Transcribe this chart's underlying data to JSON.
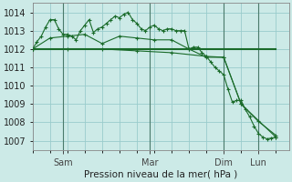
{
  "bg_color": "#cceae7",
  "grid_color": "#99cccc",
  "line_color": "#1a6b2a",
  "title": "Pression niveau de la mer( hPa )",
  "ylim": [
    1006.5,
    1014.5
  ],
  "yticks": [
    1007,
    1008,
    1009,
    1010,
    1011,
    1012,
    1013,
    1014
  ],
  "series1_x": [
    0,
    2,
    4,
    6,
    8,
    10,
    12,
    14,
    16,
    18,
    20,
    22,
    24,
    26,
    28,
    30,
    32,
    34,
    36,
    38,
    40,
    42,
    44,
    46,
    48,
    50,
    52,
    54,
    56,
    58,
    60,
    62,
    64,
    66,
    68,
    70,
    72,
    74,
    76,
    78,
    80,
    82,
    84,
    86,
    88,
    90,
    92,
    94,
    96,
    98,
    100,
    102,
    104,
    106,
    108,
    110,
    112
  ],
  "series1_y": [
    1012.0,
    1012.4,
    1012.7,
    1013.2,
    1013.6,
    1013.6,
    1013.1,
    1012.8,
    1012.8,
    1012.7,
    1012.5,
    1013.0,
    1013.3,
    1013.6,
    1012.9,
    1013.1,
    1013.2,
    1013.4,
    1013.6,
    1013.8,
    1013.7,
    1013.9,
    1014.0,
    1013.6,
    1013.4,
    1013.1,
    1013.0,
    1013.2,
    1013.3,
    1013.1,
    1013.0,
    1013.1,
    1013.1,
    1013.0,
    1013.0,
    1013.0,
    1012.0,
    1012.1,
    1012.1,
    1011.8,
    1011.6,
    1011.3,
    1011.0,
    1010.8,
    1010.6,
    1009.8,
    1009.1,
    1009.2,
    1009.2,
    1008.7,
    1008.3,
    1007.8,
    1007.4,
    1007.2,
    1007.1,
    1007.15,
    1007.2
  ],
  "series2_x": [
    0,
    8,
    16,
    24,
    32,
    40,
    48,
    56,
    64,
    72,
    80,
    88,
    96,
    104,
    112
  ],
  "series2_y": [
    1012.0,
    1012.6,
    1012.7,
    1012.8,
    1012.3,
    1012.7,
    1012.6,
    1012.5,
    1012.5,
    1012.0,
    1011.55,
    1011.55,
    1009.0,
    1008.05,
    1007.3
  ],
  "series3_x": [
    0,
    112
  ],
  "series3_y": [
    1012.0,
    1012.0
  ],
  "series4_x": [
    0,
    16,
    32,
    48,
    64,
    80,
    88,
    96,
    112
  ],
  "series4_y": [
    1012.0,
    1012.0,
    1012.0,
    1011.9,
    1011.8,
    1011.6,
    1011.55,
    1009.0,
    1007.2
  ],
  "vline_x": [
    14,
    54,
    88,
    104
  ],
  "xtick_pos": [
    14,
    54,
    88,
    104
  ],
  "xtick_labels": [
    "Sam",
    "Mar",
    "Dim",
    "Lun"
  ],
  "xlim": [
    0,
    118
  ]
}
